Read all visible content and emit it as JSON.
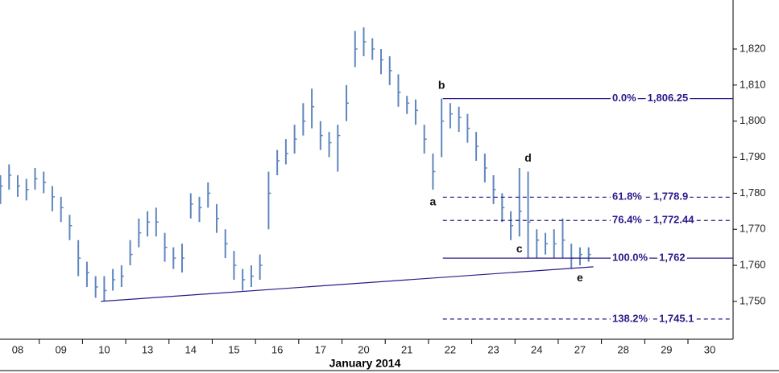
{
  "chart_data": {
    "type": "ohlc",
    "x_label": "January 2014",
    "xlim": [
      -0.41,
      16.54
    ],
    "xticks": [
      {
        "value": 0,
        "label": "08"
      },
      {
        "value": 1,
        "label": "09"
      },
      {
        "value": 2,
        "label": "10"
      },
      {
        "value": 3,
        "label": "13"
      },
      {
        "value": 4,
        "label": "14"
      },
      {
        "value": 5,
        "label": "15"
      },
      {
        "value": 6,
        "label": "16"
      },
      {
        "value": 7,
        "label": "17"
      },
      {
        "value": 8,
        "label": "20"
      },
      {
        "value": 9,
        "label": "21"
      },
      {
        "value": 10,
        "label": "22"
      },
      {
        "value": 11,
        "label": "23"
      },
      {
        "value": 12,
        "label": "24"
      },
      {
        "value": 13,
        "label": "27"
      },
      {
        "value": 14,
        "label": "28"
      },
      {
        "value": 15,
        "label": "29"
      },
      {
        "value": 16,
        "label": "30"
      }
    ],
    "ylim": [
      1739.5,
      1833.6
    ],
    "yticks": [
      {
        "value": 1750,
        "label": "1,750"
      },
      {
        "value": 1760,
        "label": "1,760"
      },
      {
        "value": 1770,
        "label": "1,770"
      },
      {
        "value": 1780,
        "label": "1,780"
      },
      {
        "value": 1790,
        "label": "1,790"
      },
      {
        "value": 1800,
        "label": "1,800"
      },
      {
        "value": 1810,
        "label": "1,810"
      },
      {
        "value": 1820,
        "label": "1,820"
      }
    ],
    "color": "#5f86bd",
    "line_color": "#2a1a8a",
    "x": [
      -0.4,
      -0.2,
      0,
      0.2,
      0.4,
      0.6,
      0.8,
      1.0,
      1.2,
      1.4,
      1.6,
      1.8,
      2.0,
      2.2,
      2.4,
      2.6,
      2.8,
      3.0,
      3.2,
      3.4,
      3.6,
      3.8,
      4.0,
      4.2,
      4.4,
      4.6,
      4.8,
      5.0,
      5.2,
      5.4,
      5.6,
      5.8,
      6.0,
      6.2,
      6.4,
      6.6,
      6.8,
      7.0,
      7.2,
      7.4,
      7.6,
      7.8,
      8.0,
      8.2,
      8.4,
      8.6,
      8.8,
      9.0,
      9.2,
      9.4,
      9.6,
      9.8,
      10.0,
      10.2,
      10.4,
      10.6,
      10.8,
      11.0,
      11.2,
      11.4,
      11.6,
      11.8,
      12.0,
      12.2,
      12.4,
      12.6,
      12.8,
      13.0,
      13.2
    ],
    "high": [
      1785,
      1788,
      1785,
      1784,
      1787,
      1786,
      1782,
      1779,
      1774,
      1767,
      1761,
      1757,
      1757,
      1759,
      1760,
      1767,
      1773,
      1775,
      1776,
      1769,
      1765,
      1766,
      1780,
      1779,
      1783,
      1777,
      1770,
      1764,
      1759,
      1760,
      1763,
      1786,
      1792,
      1795,
      1799,
      1805,
      1809,
      1800,
      1797,
      1799,
      1810,
      1825,
      1826,
      1823,
      1820,
      1818,
      1813,
      1807,
      1806,
      1799,
      1791,
      1806.25,
      1805,
      1804,
      1802,
      1797,
      1791,
      1785,
      1780,
      1775,
      1787,
      1786,
      1770,
      1769,
      1770,
      1773,
      1766,
      1765,
      1765
    ],
    "low": [
      1777,
      1781,
      1779,
      1778,
      1781,
      1780,
      1775,
      1772,
      1767,
      1757,
      1754,
      1751,
      1750,
      1753,
      1754,
      1760,
      1765,
      1768,
      1768,
      1761,
      1759,
      1758,
      1773,
      1772,
      1776,
      1769,
      1762,
      1756,
      1753,
      1754,
      1756,
      1770,
      1785,
      1788,
      1791,
      1796,
      1798,
      1792,
      1790,
      1786,
      1800,
      1815,
      1818,
      1817,
      1813,
      1810,
      1804,
      1802,
      1799,
      1791,
      1781,
      1790,
      1798,
      1797,
      1794,
      1789,
      1783,
      1777,
      1772,
      1767,
      1768,
      1762,
      1762,
      1763,
      1762,
      1762,
      1759,
      1760,
      1761
    ],
    "close": [
      1782,
      1785,
      1782,
      1781,
      1784,
      1783,
      1779,
      1776,
      1771,
      1762,
      1758,
      1754,
      1753,
      1756,
      1757,
      1763,
      1769,
      1772,
      1772,
      1765,
      1762,
      1762,
      1777,
      1776,
      1780,
      1773,
      1766,
      1760,
      1756,
      1757,
      1760,
      1780,
      1789,
      1791,
      1795,
      1800,
      1804,
      1796,
      1794,
      1796,
      1805,
      1820,
      1822,
      1820,
      1817,
      1814,
      1808,
      1805,
      1803,
      1795,
      1786,
      1800,
      1802,
      1801,
      1798,
      1793,
      1787,
      1781,
      1776,
      1771,
      1775,
      1772,
      1767,
      1766,
      1766,
      1767,
      1762,
      1763,
      1763
    ],
    "trendline": {
      "x": [
        1.92,
        13.31
      ],
      "y": [
        1750,
        1759.6
      ]
    },
    "levels": [
      {
        "label": "0.0%",
        "price_label": "1,806.25",
        "value": 1806.25,
        "style": "solid",
        "x_start": 9.83
      },
      {
        "label": "61.8%",
        "price_label": "1,778.9",
        "value": 1778.9,
        "style": "dashed",
        "x_start": 9.83
      },
      {
        "label": "76.4%",
        "price_label": "1,772.44",
        "value": 1772.44,
        "style": "dashed",
        "x_start": 9.83
      },
      {
        "label": "100.0%",
        "price_label": "1,762",
        "value": 1762,
        "style": "solid",
        "x_start": 9.83
      },
      {
        "label": "138.2%",
        "price_label": "1,745.1",
        "value": 1745.1,
        "style": "dashed",
        "x_start": 9.83
      }
    ],
    "annotations": [
      {
        "text": "a",
        "bar": 50,
        "side": "below"
      },
      {
        "text": "b",
        "bar": 51,
        "side": "above"
      },
      {
        "text": "c",
        "bar": 60,
        "side": "below"
      },
      {
        "text": "d",
        "bar": 61,
        "side": "above"
      },
      {
        "text": "e",
        "bar": 67,
        "side": "below"
      }
    ]
  }
}
